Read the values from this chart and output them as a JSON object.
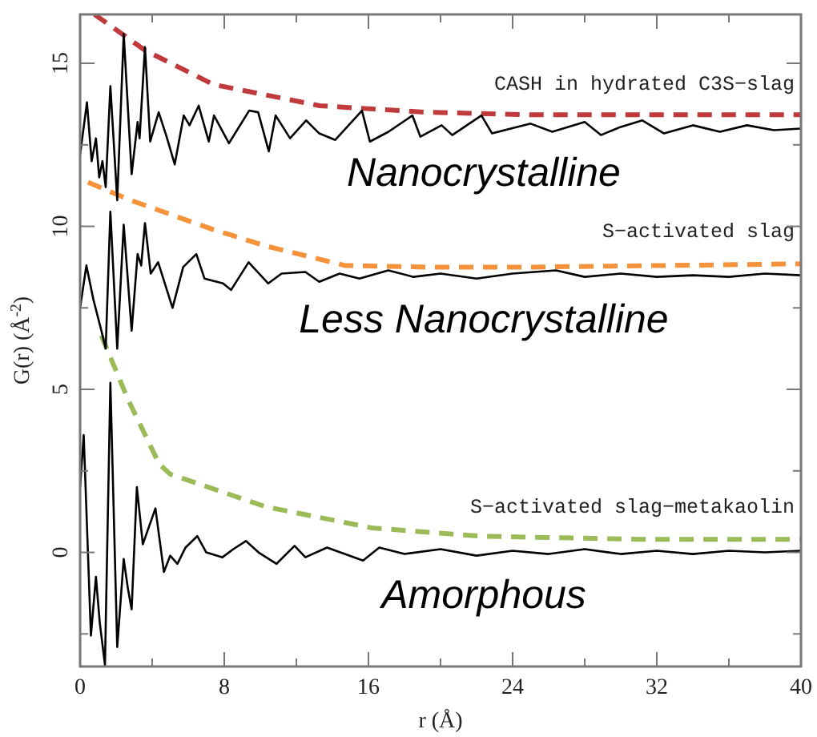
{
  "chart_data": {
    "type": "line",
    "xlabel": "r (Å)",
    "ylabel": "G(r) (Å$^{-2}$)",
    "xlim": [
      0,
      40
    ],
    "ylim": [
      -3.5,
      16.5
    ],
    "xticks": [
      0,
      {
        "value": 4,
        "label": null
      },
      8,
      {
        "value": 12,
        "label": null
      },
      16,
      {
        "value": 20,
        "label": null
      },
      24,
      {
        "value": 28,
        "label": null
      },
      32,
      {
        "value": 36,
        "label": null
      },
      40
    ],
    "yticks": [
      {
        "value": -2.5,
        "label": null
      },
      0,
      {
        "value": 2.5,
        "label": null
      },
      5,
      {
        "value": 7.5,
        "label": null
      },
      10,
      {
        "value": 12.5,
        "label": null
      },
      15
    ],
    "grid": false,
    "marker": "none",
    "series": [
      {
        "name": "CASH in hydrated C3S−slag",
        "color": "#000000",
        "line_style": "solid",
        "x": [
          0,
          0.38,
          0.64,
          0.88,
          1.06,
          1.24,
          1.42,
          1.68,
          2.06,
          2.42,
          2.86,
          3.19,
          3.3,
          3.6,
          3.89,
          4.36,
          4.8,
          5.25,
          5.75,
          6.07,
          6.58,
          7.14,
          7.43,
          8.26,
          9.38,
          9.88,
          10.47,
          10.85,
          11.65,
          12.54,
          13.27,
          14.16,
          15.64,
          16.08,
          17.11,
          18.44,
          18.88,
          20.06,
          20.65,
          22.27,
          22.86,
          23.9,
          25,
          26.2,
          28,
          28.9,
          30,
          31.2,
          32.4,
          34,
          35.5,
          37,
          38.5,
          40
        ],
        "values": [
          12.2,
          13.8,
          12.0,
          12.7,
          11.5,
          12.0,
          11.2,
          14.3,
          10.8,
          15.9,
          11.6,
          13.2,
          12.7,
          15.5,
          12.6,
          13.5,
          12.75,
          11.9,
          13.4,
          13.1,
          13.7,
          12.6,
          13.4,
          12.55,
          13.55,
          13.5,
          12.3,
          13.4,
          12.7,
          13.25,
          12.85,
          12.65,
          13.55,
          12.6,
          12.9,
          13.4,
          12.75,
          13.1,
          12.8,
          13.4,
          12.85,
          13.0,
          13.15,
          12.9,
          13.2,
          12.8,
          13.05,
          13.25,
          12.85,
          13.1,
          12.9,
          13.1,
          12.95,
          13.0
        ]
      },
      {
        "color": "#c0393b",
        "line_style": "dashed",
        "x": [
          0.8,
          3.6,
          7.4,
          13.3,
          19.2,
          25,
          40
        ],
        "values": [
          16.5,
          15.4,
          14.35,
          13.7,
          13.5,
          13.42,
          13.42
        ]
      },
      {
        "name": "S−activated slag",
        "color": "#000000",
        "line_style": "solid",
        "x": [
          0,
          0.35,
          0.74,
          1.18,
          1.42,
          1.68,
          2.06,
          2.42,
          2.86,
          3.19,
          3.39,
          3.6,
          3.92,
          4.33,
          5.13,
          5.72,
          6.45,
          6.9,
          7.93,
          8.38,
          9.35,
          10.44,
          11.18,
          12.5,
          13.27,
          14.4,
          15.5,
          17.1,
          18.5,
          20,
          22,
          24,
          26.4,
          28,
          30,
          32,
          34,
          36,
          38,
          40
        ],
        "values": [
          7.5,
          8.8,
          7.75,
          6.8,
          6.25,
          10.45,
          6.25,
          10.05,
          6.8,
          9.15,
          8.8,
          10.1,
          8.55,
          8.9,
          7.5,
          8.75,
          9.15,
          8.4,
          8.25,
          8.05,
          8.9,
          8.25,
          8.55,
          8.6,
          8.3,
          8.55,
          8.4,
          8.65,
          8.45,
          8.55,
          8.4,
          8.55,
          8.65,
          8.45,
          8.55,
          8.45,
          8.5,
          8.45,
          8.55,
          8.5
        ]
      },
      {
        "color": "#f5923a",
        "line_style": "dashed",
        "x": [
          0.44,
          2.8,
          7.4,
          10.3,
          14.7,
          19.2,
          25,
          40
        ],
        "values": [
          11.35,
          10.8,
          9.9,
          9.4,
          8.8,
          8.75,
          8.75,
          8.85
        ]
      },
      {
        "name": "S−activated slag−metakaolin",
        "color": "#000000",
        "line_style": "solid",
        "x": [
          0,
          0.2,
          0.6,
          0.88,
          1.09,
          1.38,
          1.68,
          2.06,
          2.42,
          2.65,
          2.86,
          3.15,
          3.48,
          4.18,
          4.65,
          5.0,
          5.4,
          5.85,
          6.5,
          7.0,
          7.9,
          8.5,
          9.2,
          9.9,
          10.9,
          11.9,
          12.5,
          13.7,
          15.7,
          16.6,
          18,
          20,
          22,
          24,
          26,
          28,
          30,
          32,
          34,
          36,
          38,
          40
        ],
        "values": [
          2.0,
          3.6,
          -2.55,
          -0.75,
          -2.15,
          -3.45,
          5.2,
          -2.9,
          -0.2,
          -1.1,
          -1.75,
          2.0,
          0.25,
          1.35,
          -0.6,
          -0.1,
          -0.35,
          0.15,
          0.5,
          0.0,
          -0.15,
          0.1,
          0.35,
          0.0,
          -0.35,
          0.2,
          -0.15,
          0.15,
          -0.25,
          0.15,
          -0.05,
          0.1,
          -0.1,
          0.05,
          -0.05,
          0.1,
          -0.05,
          0.05,
          -0.05,
          0.05,
          0.0,
          0.05
        ]
      },
      {
        "color": "#9bbb59",
        "line_style": "dashed",
        "x": [
          1.18,
          2.65,
          4.4,
          5.0,
          10.3,
          16.2,
          22.1,
          31,
          40
        ],
        "values": [
          6.65,
          4.7,
          2.7,
          2.4,
          1.4,
          0.75,
          0.5,
          0.4,
          0.4
        ]
      }
    ],
    "annotations": [
      "Nanocrystalline",
      "Less Nanocrystalline",
      "Amorphous"
    ]
  }
}
